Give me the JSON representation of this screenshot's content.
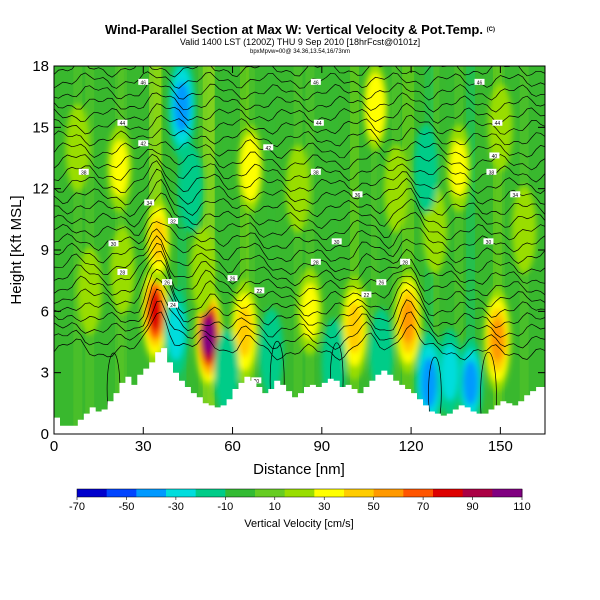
{
  "chart_data": {
    "type": "heatmap",
    "title": "Wind-Parallel Section at Max W: Vertical Velocity & Pot.Temp.",
    "title_mark": "(C)",
    "subtitle": "Valid 1400 LST (1200Z) THU 9 Sep 2010 [18hrFcst@0101z]",
    "subtitle2": "bpxMpvw=00@ 34.36,13.54,16/73nm",
    "xlabel": "Distance [nm]",
    "ylabel": "Height [Kft MSL]",
    "xlim": [
      0,
      165
    ],
    "ylim": [
      0,
      18
    ],
    "x_ticks": [
      "0",
      "30",
      "60",
      "90",
      "120",
      "150"
    ],
    "y_ticks": [
      "0",
      "3",
      "6",
      "9",
      "12",
      "15",
      "18"
    ],
    "colorbar": {
      "label": "Vertical Velocity [cm/s]",
      "ticks": [
        "-70",
        "-50",
        "-30",
        "-10",
        "10",
        "30",
        "50",
        "70",
        "90",
        "110"
      ],
      "range": [
        -70,
        110
      ],
      "colors": [
        "#0000cc",
        "#0044ff",
        "#0099ff",
        "#00dddd",
        "#00cc88",
        "#33bb33",
        "#66cc22",
        "#99dd00",
        "#ffff00",
        "#ffcc00",
        "#ff9900",
        "#ff5500",
        "#dd0000",
        "#aa0044",
        "#800080"
      ]
    },
    "terrain": {
      "x": [
        0,
        2,
        4,
        6,
        8,
        10,
        12,
        14,
        16,
        18,
        20,
        22,
        24,
        26,
        28,
        30,
        32,
        34,
        36,
        38,
        40,
        42,
        44,
        46,
        48,
        50,
        52,
        54,
        56,
        58,
        60,
        62,
        64,
        66,
        68,
        70,
        72,
        74,
        76,
        78,
        80,
        82,
        84,
        86,
        88,
        90,
        92,
        94,
        96,
        98,
        100,
        102,
        104,
        106,
        108,
        110,
        112,
        114,
        116,
        118,
        120,
        122,
        124,
        126,
        128,
        130,
        132,
        134,
        136,
        138,
        140,
        142,
        144,
        146,
        148,
        150,
        152,
        154,
        156,
        158,
        160,
        162,
        165
      ],
      "height": [
        0.8,
        0.4,
        0.4,
        0.4,
        0.7,
        1.0,
        1.3,
        1.1,
        1.2,
        1.6,
        2.0,
        2.5,
        2.8,
        2.4,
        2.9,
        3.2,
        3.5,
        4.0,
        4.2,
        3.5,
        3.0,
        2.6,
        2.3,
        2.0,
        1.8,
        1.5,
        1.4,
        1.3,
        1.4,
        1.7,
        2.2,
        2.5,
        2.8,
        2.6,
        2.3,
        2.0,
        2.2,
        2.6,
        2.4,
        2.1,
        1.8,
        2.0,
        2.3,
        2.4,
        2.3,
        2.5,
        2.7,
        2.6,
        2.3,
        2.4,
        2.2,
        2.0,
        2.3,
        2.6,
        2.9,
        3.1,
        2.9,
        2.6,
        2.4,
        2.2,
        2.0,
        1.7,
        1.4,
        1.1,
        1.0,
        0.9,
        1.0,
        1.2,
        1.4,
        1.3,
        1.1,
        1.0,
        1.0,
        1.2,
        1.4,
        1.6,
        1.5,
        1.4,
        1.6,
        1.9,
        2.1,
        2.3,
        2.2
      ]
    },
    "updraft_cores": [
      {
        "x": 8,
        "z": 14,
        "value": 25
      },
      {
        "x": 12,
        "z": 7,
        "value": 15
      },
      {
        "x": 22,
        "z": 13,
        "value": 30
      },
      {
        "x": 23,
        "z": 8,
        "value": 25
      },
      {
        "x": 34,
        "z": 6,
        "value": 75
      },
      {
        "x": 35,
        "z": 9.5,
        "value": 40
      },
      {
        "x": 52,
        "z": 4.8,
        "value": 100
      },
      {
        "x": 50,
        "z": 8,
        "value": 20
      },
      {
        "x": 66,
        "z": 13,
        "value": 35
      },
      {
        "x": 64,
        "z": 5,
        "value": 45
      },
      {
        "x": 82,
        "z": 12,
        "value": 20
      },
      {
        "x": 86,
        "z": 6,
        "value": 30
      },
      {
        "x": 101,
        "z": 5.2,
        "value": 45
      },
      {
        "x": 108,
        "z": 16,
        "value": 35
      },
      {
        "x": 115,
        "z": 12,
        "value": 25
      },
      {
        "x": 119,
        "z": 5.5,
        "value": 60
      },
      {
        "x": 128,
        "z": 10,
        "value": 20
      },
      {
        "x": 136,
        "z": 13,
        "value": 30
      },
      {
        "x": 149,
        "z": 4.6,
        "value": 50
      },
      {
        "x": 150,
        "z": 15,
        "value": 25
      },
      {
        "x": 158,
        "z": 10,
        "value": 20
      }
    ],
    "downdraft_cores": [
      {
        "x": 41,
        "z": 5,
        "value": -25
      },
      {
        "x": 43,
        "z": 16,
        "value": -45
      },
      {
        "x": 46,
        "z": 12,
        "value": -20
      },
      {
        "x": 58,
        "z": 3,
        "value": -20
      },
      {
        "x": 73,
        "z": 4,
        "value": -15
      },
      {
        "x": 94,
        "z": 3.5,
        "value": -15
      },
      {
        "x": 110,
        "z": 4,
        "value": -15
      },
      {
        "x": 126,
        "z": 2.5,
        "value": -45
      },
      {
        "x": 140,
        "z": 2.5,
        "value": -35
      },
      {
        "x": 133,
        "z": 3,
        "value": -25
      },
      {
        "x": 125,
        "z": 13,
        "value": -15
      }
    ],
    "isotherm_labels": [
      {
        "x": 30,
        "z": 17.2,
        "text": "46"
      },
      {
        "x": 88,
        "z": 17.2,
        "text": "46"
      },
      {
        "x": 143,
        "z": 17.2,
        "text": "46"
      },
      {
        "x": 23,
        "z": 15.2,
        "text": "44"
      },
      {
        "x": 89,
        "z": 15.2,
        "text": "44"
      },
      {
        "x": 149,
        "z": 15.2,
        "text": "44"
      },
      {
        "x": 30,
        "z": 14.2,
        "text": "42"
      },
      {
        "x": 72,
        "z": 14.0,
        "text": "42"
      },
      {
        "x": 148,
        "z": 13.6,
        "text": "40"
      },
      {
        "x": 10,
        "z": 12.8,
        "text": "38"
      },
      {
        "x": 88,
        "z": 12.8,
        "text": "38"
      },
      {
        "x": 147,
        "z": 12.8,
        "text": "38"
      },
      {
        "x": 102,
        "z": 11.7,
        "text": "36"
      },
      {
        "x": 32,
        "z": 11.3,
        "text": "34"
      },
      {
        "x": 155,
        "z": 11.7,
        "text": "34"
      },
      {
        "x": 40,
        "z": 10.4,
        "text": "32"
      },
      {
        "x": 20,
        "z": 9.3,
        "text": "30"
      },
      {
        "x": 95,
        "z": 9.4,
        "text": "30"
      },
      {
        "x": 146,
        "z": 9.4,
        "text": "30"
      },
      {
        "x": 23,
        "z": 7.9,
        "text": "28"
      },
      {
        "x": 88,
        "z": 8.4,
        "text": "28"
      },
      {
        "x": 118,
        "z": 8.4,
        "text": "28"
      },
      {
        "x": 38,
        "z": 7.4,
        "text": "26"
      },
      {
        "x": 60,
        "z": 7.6,
        "text": "26"
      },
      {
        "x": 110,
        "z": 7.4,
        "text": "26"
      },
      {
        "x": 40,
        "z": 6.3,
        "text": "24"
      },
      {
        "x": 69,
        "z": 7.0,
        "text": "22"
      },
      {
        "x": 105,
        "z": 6.8,
        "text": "22"
      },
      {
        "x": 68,
        "z": 2.6,
        "text": "20"
      }
    ]
  }
}
